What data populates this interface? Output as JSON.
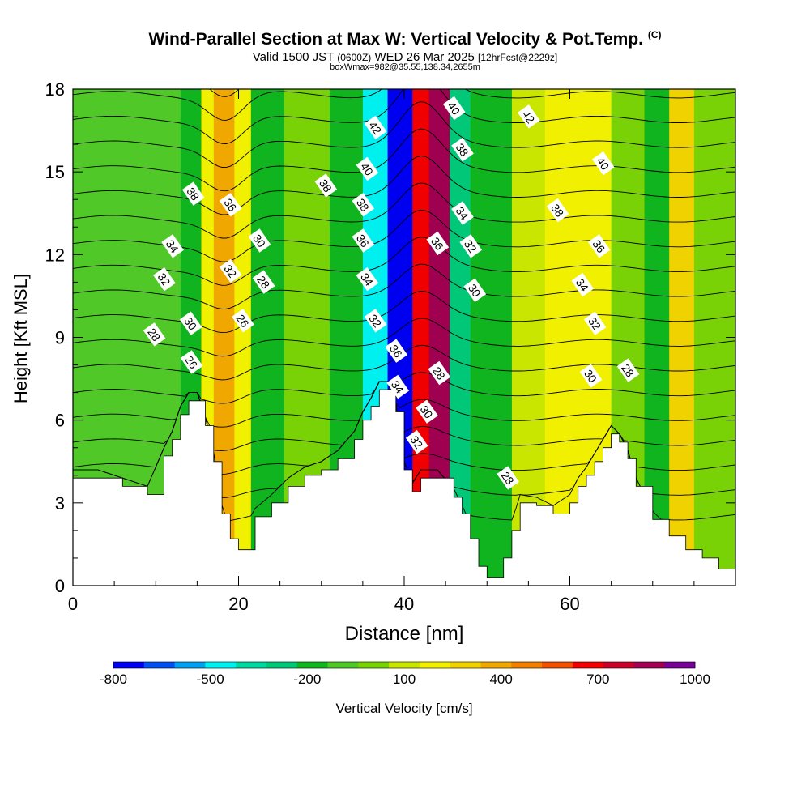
{
  "header": {
    "title": "Wind-Parallel Section at Max W: Vertical Velocity & Pot.Temp.",
    "title_mark": "(C)",
    "valid_prefix": "Valid 1500 JST",
    "valid_utc": "(0600Z)",
    "valid_date": "WED 26 Mar 2025",
    "forecast": "[12hrFcst@2229z]",
    "boxwmax": "boxWmax=982@35.55,138.34,2655m"
  },
  "chart_data": {
    "type": "heatmap",
    "xlabel": "Distance [nm]",
    "ylabel": "Height [Kft MSL]",
    "xlim": [
      0,
      80
    ],
    "ylim": [
      0,
      18
    ],
    "xticks": [
      "0",
      "20",
      "40",
      "60"
    ],
    "yticks": [
      "0",
      "3",
      "6",
      "9",
      "12",
      "15",
      "18"
    ],
    "colorbar": {
      "label": "Vertical Velocity [cm/s]",
      "tick_labels": [
        "-800",
        "-500",
        "-200",
        "100",
        "400",
        "700",
        "1000"
      ],
      "levels": [
        -800,
        -700,
        -600,
        -500,
        -400,
        -300,
        -200,
        -100,
        0,
        100,
        200,
        300,
        400,
        500,
        600,
        700,
        800,
        900,
        1000
      ],
      "colors": [
        "#0000f0",
        "#0050f0",
        "#00a0f0",
        "#00f0f0",
        "#00d8a0",
        "#00c878",
        "#10b41e",
        "#50c828",
        "#78d205",
        "#c8e600",
        "#f0f000",
        "#f0d200",
        "#f0a800",
        "#f08000",
        "#f05000",
        "#f00000",
        "#c80028",
        "#a00050",
        "#780096"
      ]
    },
    "velocity_bands": [
      {
        "x": [
          0,
          13
        ],
        "value": -50
      },
      {
        "x": [
          13,
          15.5
        ],
        "value": -200
      },
      {
        "x": [
          15.5,
          17
        ],
        "value": 200
      },
      {
        "x": [
          17,
          19.5
        ],
        "value": 450
      },
      {
        "x": [
          19.5,
          21.5
        ],
        "value": 200
      },
      {
        "x": [
          21.5,
          25.5
        ],
        "value": -200
      },
      {
        "x": [
          25.5,
          31
        ],
        "value": 50
      },
      {
        "x": [
          31,
          35
        ],
        "value": -150
      },
      {
        "x": [
          35,
          38
        ],
        "value": -500
      },
      {
        "x": [
          38,
          41
        ],
        "value": -750
      },
      {
        "x": [
          41,
          43
        ],
        "value": 750
      },
      {
        "x": [
          43,
          45.5
        ],
        "value": 950
      },
      {
        "x": [
          45.5,
          48
        ],
        "value": -250
      },
      {
        "x": [
          48,
          53
        ],
        "value": -180
      },
      {
        "x": [
          53,
          57
        ],
        "value": 100
      },
      {
        "x": [
          57,
          65
        ],
        "value": 250
      },
      {
        "x": [
          65,
          69
        ],
        "value": 80
      },
      {
        "x": [
          69,
          72
        ],
        "value": -200
      },
      {
        "x": [
          72,
          75
        ],
        "value": 300
      },
      {
        "x": [
          75,
          80
        ],
        "value": 50
      }
    ],
    "terrain": {
      "x": [
        0,
        3,
        6,
        9,
        11,
        12,
        13,
        14,
        15,
        16,
        17,
        18,
        19,
        20,
        21,
        22,
        24,
        26,
        28,
        30,
        32,
        34,
        35,
        36,
        37,
        38,
        39,
        40,
        41,
        42,
        44,
        46,
        47,
        48,
        49,
        50,
        51,
        52,
        53,
        54,
        56,
        58,
        60,
        61,
        62,
        63,
        64,
        65,
        66,
        67,
        68,
        70,
        72,
        74,
        76,
        78,
        80
      ],
      "y": [
        3.9,
        3.9,
        3.6,
        3.3,
        4.7,
        5.3,
        6.2,
        6.7,
        6.7,
        5.8,
        4.5,
        2.6,
        1.7,
        1.3,
        1.3,
        2.5,
        3.0,
        3.6,
        4.0,
        4.2,
        4.6,
        5.3,
        6.0,
        6.5,
        7.1,
        7.1,
        6.3,
        4.2,
        3.4,
        3.9,
        3.9,
        3.2,
        2.6,
        1.7,
        0.7,
        0.3,
        0.3,
        1.0,
        2.0,
        3.0,
        2.9,
        2.6,
        3.0,
        3.6,
        4.0,
        4.5,
        5.0,
        5.5,
        5.2,
        4.6,
        3.6,
        2.4,
        1.8,
        1.3,
        1.0,
        0.6,
        0.6
      ]
    },
    "contour_labels": [
      {
        "text": "42",
        "x": 36.5,
        "y": 16.6
      },
      {
        "text": "40",
        "x": 35.5,
        "y": 15.1
      },
      {
        "text": "38",
        "x": 35.0,
        "y": 13.8
      },
      {
        "text": "36",
        "x": 35.0,
        "y": 12.5
      },
      {
        "text": "34",
        "x": 35.5,
        "y": 11.1
      },
      {
        "text": "32",
        "x": 36.5,
        "y": 9.6
      },
      {
        "text": "36",
        "x": 39.0,
        "y": 8.5
      },
      {
        "text": "34",
        "x": 39.2,
        "y": 7.2
      },
      {
        "text": "32",
        "x": 41.5,
        "y": 5.2
      },
      {
        "text": "30",
        "x": 42.7,
        "y": 6.3
      },
      {
        "text": "28",
        "x": 44.2,
        "y": 7.7
      },
      {
        "text": "40",
        "x": 46.0,
        "y": 17.3
      },
      {
        "text": "38",
        "x": 47.0,
        "y": 15.8
      },
      {
        "text": "34",
        "x": 47.0,
        "y": 13.5
      },
      {
        "text": "36",
        "x": 44.0,
        "y": 12.4
      },
      {
        "text": "32",
        "x": 48.0,
        "y": 12.3
      },
      {
        "text": "30",
        "x": 48.5,
        "y": 10.7
      },
      {
        "text": "28",
        "x": 52.5,
        "y": 3.9
      },
      {
        "text": "42",
        "x": 55.0,
        "y": 17.0
      },
      {
        "text": "40",
        "x": 64.0,
        "y": 15.3
      },
      {
        "text": "38",
        "x": 58.5,
        "y": 13.6
      },
      {
        "text": "36",
        "x": 63.5,
        "y": 12.3
      },
      {
        "text": "34",
        "x": 61.5,
        "y": 10.9
      },
      {
        "text": "32",
        "x": 63.0,
        "y": 9.5
      },
      {
        "text": "30",
        "x": 62.5,
        "y": 7.6
      },
      {
        "text": "28",
        "x": 67.0,
        "y": 7.8
      },
      {
        "text": "38",
        "x": 14.5,
        "y": 14.2
      },
      {
        "text": "34",
        "x": 12.0,
        "y": 12.3
      },
      {
        "text": "32",
        "x": 11.0,
        "y": 11.1
      },
      {
        "text": "28",
        "x": 9.8,
        "y": 9.1
      },
      {
        "text": "30",
        "x": 14.2,
        "y": 9.5
      },
      {
        "text": "26",
        "x": 14.3,
        "y": 8.1
      },
      {
        "text": "36",
        "x": 19.0,
        "y": 13.8
      },
      {
        "text": "32",
        "x": 19.0,
        "y": 11.4
      },
      {
        "text": "30",
        "x": 22.5,
        "y": 12.5
      },
      {
        "text": "28",
        "x": 23.0,
        "y": 11.0
      },
      {
        "text": "26",
        "x": 20.5,
        "y": 9.6
      },
      {
        "text": "38",
        "x": 30.5,
        "y": 14.5
      }
    ]
  }
}
